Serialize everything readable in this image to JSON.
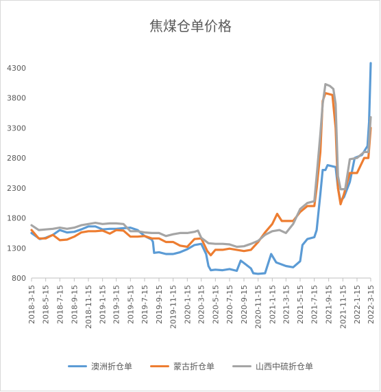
{
  "chart_data": {
    "type": "line",
    "title": "焦煤仓单价格",
    "ylim": [
      800,
      4300
    ],
    "yticks": [
      800,
      1300,
      1800,
      2300,
      2800,
      3300,
      3800,
      4300
    ],
    "xticks": [
      "2018-3-15",
      "2018-5-15",
      "2018-7-15",
      "2018-9-15",
      "2018-11-15",
      "2019-1-15",
      "2019-3-15",
      "2019-5-15",
      "2019-7-15",
      "2019-9-15",
      "2019-11-15",
      "2020-1-15",
      "2020-3-15",
      "2020-5-15",
      "2020-7-15",
      "2020-9-15",
      "2020-11-15",
      "2021-1-15",
      "2021-3-15",
      "2021-5-15",
      "2021-7-15",
      "2021-9-15",
      "2021-11-15",
      "2022-1-15",
      "2022-3-15"
    ],
    "grid": false,
    "legend": "bottom",
    "series": [
      {
        "name": "澳洲折仓单",
        "color": "#5b9bd5",
        "points": [
          [
            "2018-03-15",
            1550
          ],
          [
            "2018-04-20",
            1450
          ],
          [
            "2018-05-15",
            1470
          ],
          [
            "2018-06-15",
            1520
          ],
          [
            "2018-07-15",
            1600
          ],
          [
            "2018-08-15",
            1560
          ],
          [
            "2018-09-15",
            1570
          ],
          [
            "2018-10-15",
            1610
          ],
          [
            "2018-11-15",
            1660
          ],
          [
            "2018-12-15",
            1660
          ],
          [
            "2019-01-15",
            1610
          ],
          [
            "2019-02-15",
            1620
          ],
          [
            "2019-03-15",
            1620
          ],
          [
            "2019-04-15",
            1630
          ],
          [
            "2019-05-15",
            1640
          ],
          [
            "2019-06-15",
            1600
          ],
          [
            "2019-07-15",
            1500
          ],
          [
            "2019-08-15",
            1440
          ],
          [
            "2019-08-20",
            1400
          ],
          [
            "2019-08-25",
            1220
          ],
          [
            "2019-09-15",
            1230
          ],
          [
            "2019-10-15",
            1200
          ],
          [
            "2019-11-15",
            1200
          ],
          [
            "2019-12-15",
            1230
          ],
          [
            "2020-01-15",
            1280
          ],
          [
            "2020-02-15",
            1350
          ],
          [
            "2020-03-15",
            1370
          ],
          [
            "2020-04-05",
            1200
          ],
          [
            "2020-04-15",
            1000
          ],
          [
            "2020-04-25",
            930
          ],
          [
            "2020-05-15",
            940
          ],
          [
            "2020-06-15",
            930
          ],
          [
            "2020-07-15",
            950
          ],
          [
            "2020-08-15",
            920
          ],
          [
            "2020-09-01",
            1090
          ],
          [
            "2020-09-15",
            1050
          ],
          [
            "2020-10-15",
            960
          ],
          [
            "2020-10-25",
            880
          ],
          [
            "2020-11-15",
            870
          ],
          [
            "2020-12-15",
            880
          ],
          [
            "2021-01-10",
            1200
          ],
          [
            "2021-02-01",
            1060
          ],
          [
            "2021-03-15",
            1000
          ],
          [
            "2021-04-15",
            980
          ],
          [
            "2021-05-15",
            1080
          ],
          [
            "2021-05-25",
            1350
          ],
          [
            "2021-06-15",
            1450
          ],
          [
            "2021-07-15",
            1480
          ],
          [
            "2021-07-25",
            1600
          ],
          [
            "2021-08-10",
            2200
          ],
          [
            "2021-08-20",
            2600
          ],
          [
            "2021-09-01",
            2600
          ],
          [
            "2021-09-10",
            2680
          ],
          [
            "2021-10-15",
            2650
          ],
          [
            "2021-10-25",
            2300
          ],
          [
            "2021-11-05",
            2080
          ],
          [
            "2021-11-20",
            2150
          ],
          [
            "2021-12-15",
            2400
          ],
          [
            "2022-01-05",
            2800
          ],
          [
            "2022-02-05",
            2850
          ],
          [
            "2022-03-01",
            3000
          ],
          [
            "2022-03-08",
            3400
          ],
          [
            "2022-03-15",
            4380
          ]
        ]
      },
      {
        "name": "蒙古折仓单",
        "color": "#ed7d31",
        "points": [
          [
            "2018-03-15",
            1600
          ],
          [
            "2018-04-15",
            1460
          ],
          [
            "2018-05-15",
            1460
          ],
          [
            "2018-06-15",
            1520
          ],
          [
            "2018-07-15",
            1430
          ],
          [
            "2018-08-15",
            1440
          ],
          [
            "2018-09-15",
            1490
          ],
          [
            "2018-10-15",
            1560
          ],
          [
            "2018-11-15",
            1580
          ],
          [
            "2018-12-15",
            1580
          ],
          [
            "2019-01-15",
            1590
          ],
          [
            "2019-02-15",
            1540
          ],
          [
            "2019-03-15",
            1600
          ],
          [
            "2019-04-15",
            1590
          ],
          [
            "2019-05-15",
            1490
          ],
          [
            "2019-06-15",
            1490
          ],
          [
            "2019-07-15",
            1500
          ],
          [
            "2019-08-15",
            1460
          ],
          [
            "2019-09-15",
            1460
          ],
          [
            "2019-10-15",
            1400
          ],
          [
            "2019-11-15",
            1400
          ],
          [
            "2019-12-15",
            1340
          ],
          [
            "2020-01-15",
            1320
          ],
          [
            "2020-02-15",
            1450
          ],
          [
            "2020-03-15",
            1460
          ],
          [
            "2020-04-10",
            1250
          ],
          [
            "2020-04-25",
            1180
          ],
          [
            "2020-05-15",
            1270
          ],
          [
            "2020-06-15",
            1270
          ],
          [
            "2020-07-15",
            1290
          ],
          [
            "2020-08-15",
            1270
          ],
          [
            "2020-09-15",
            1250
          ],
          [
            "2020-10-15",
            1270
          ],
          [
            "2020-11-15",
            1400
          ],
          [
            "2020-12-15",
            1560
          ],
          [
            "2021-01-15",
            1700
          ],
          [
            "2021-02-05",
            1870
          ],
          [
            "2021-02-25",
            1750
          ],
          [
            "2021-03-15",
            1750
          ],
          [
            "2021-04-15",
            1750
          ],
          [
            "2021-05-15",
            1900
          ],
          [
            "2021-06-15",
            2000
          ],
          [
            "2021-07-15",
            2000
          ],
          [
            "2021-07-25",
            2300
          ],
          [
            "2021-08-10",
            2900
          ],
          [
            "2021-08-20",
            3750
          ],
          [
            "2021-09-01",
            3880
          ],
          [
            "2021-10-01",
            3850
          ],
          [
            "2021-10-15",
            3300
          ],
          [
            "2021-10-25",
            2300
          ],
          [
            "2021-11-05",
            2030
          ],
          [
            "2021-11-20",
            2200
          ],
          [
            "2021-12-15",
            2550
          ],
          [
            "2022-01-15",
            2550
          ],
          [
            "2022-02-15",
            2800
          ],
          [
            "2022-03-05",
            2800
          ],
          [
            "2022-03-15",
            3300
          ]
        ]
      },
      {
        "name": "山西中硫折仓单",
        "color": "#a5a5a5",
        "points": [
          [
            "2018-03-15",
            1680
          ],
          [
            "2018-04-15",
            1600
          ],
          [
            "2018-05-15",
            1610
          ],
          [
            "2018-06-15",
            1620
          ],
          [
            "2018-07-15",
            1640
          ],
          [
            "2018-08-15",
            1620
          ],
          [
            "2018-09-15",
            1640
          ],
          [
            "2018-10-15",
            1680
          ],
          [
            "2018-11-15",
            1700
          ],
          [
            "2018-12-15",
            1720
          ],
          [
            "2019-01-15",
            1700
          ],
          [
            "2019-02-15",
            1710
          ],
          [
            "2019-03-15",
            1710
          ],
          [
            "2019-04-15",
            1700
          ],
          [
            "2019-05-15",
            1580
          ],
          [
            "2019-06-15",
            1580
          ],
          [
            "2019-07-15",
            1560
          ],
          [
            "2019-08-15",
            1550
          ],
          [
            "2019-09-15",
            1550
          ],
          [
            "2019-10-15",
            1500
          ],
          [
            "2019-11-15",
            1530
          ],
          [
            "2019-12-15",
            1550
          ],
          [
            "2020-01-15",
            1550
          ],
          [
            "2020-02-15",
            1570
          ],
          [
            "2020-03-01",
            1590
          ],
          [
            "2020-03-15",
            1470
          ],
          [
            "2020-04-15",
            1380
          ],
          [
            "2020-05-15",
            1370
          ],
          [
            "2020-06-15",
            1370
          ],
          [
            "2020-07-15",
            1360
          ],
          [
            "2020-08-15",
            1320
          ],
          [
            "2020-09-15",
            1330
          ],
          [
            "2020-10-15",
            1370
          ],
          [
            "2020-11-15",
            1420
          ],
          [
            "2020-12-15",
            1520
          ],
          [
            "2021-01-15",
            1580
          ],
          [
            "2021-02-15",
            1600
          ],
          [
            "2021-03-15",
            1550
          ],
          [
            "2021-04-15",
            1700
          ],
          [
            "2021-05-15",
            1950
          ],
          [
            "2021-06-15",
            2050
          ],
          [
            "2021-07-15",
            2080
          ],
          [
            "2021-07-25",
            2500
          ],
          [
            "2021-08-10",
            3200
          ],
          [
            "2021-08-20",
            3700
          ],
          [
            "2021-09-01",
            4030
          ],
          [
            "2021-09-20",
            4000
          ],
          [
            "2021-10-05",
            3950
          ],
          [
            "2021-10-15",
            3700
          ],
          [
            "2021-10-25",
            2500
          ],
          [
            "2021-11-05",
            2280
          ],
          [
            "2021-11-25",
            2280
          ],
          [
            "2021-12-15",
            2780
          ],
          [
            "2022-01-15",
            2800
          ],
          [
            "2022-02-15",
            2900
          ],
          [
            "2022-03-05",
            2900
          ],
          [
            "2022-03-15",
            3480
          ]
        ]
      }
    ]
  }
}
